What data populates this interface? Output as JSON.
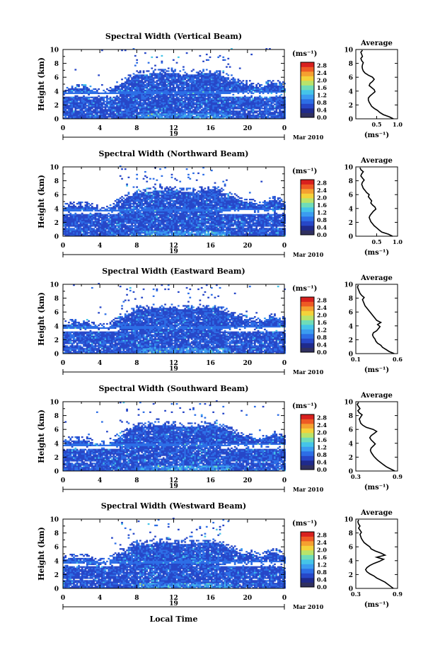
{
  "figure": {
    "xlabel": "Local Time",
    "date_label": "Mar 2010",
    "colorbar_unit": "(ms⁻¹)",
    "profile_title": "Average",
    "profile_xlabel": "(ms⁻¹)",
    "ylabel": "Height (km)",
    "day_label": "19"
  },
  "colors": {
    "colormap": [
      "#303060",
      "#1f2a8c",
      "#2747c8",
      "#2d6ee6",
      "#3b9cf0",
      "#45c4e8",
      "#6fdcb8",
      "#b9e36a",
      "#f4d23a",
      "#f5a030",
      "#ee5a24",
      "#d8201e"
    ],
    "text": "#000000"
  },
  "chart_data": [
    {
      "type": "heatmap",
      "title": "Spectral Width (Vertical Beam)",
      "xlabel": "",
      "ylabel": "Height (km)",
      "xlim": [
        0,
        24
      ],
      "ylim": [
        0,
        10
      ],
      "x_ticks": [
        "0",
        "4",
        "8",
        "12",
        "16",
        "20",
        "0"
      ],
      "y_ticks": [
        "0",
        "2",
        "4",
        "6",
        "8",
        "10"
      ],
      "colorbar_range": [
        0.0,
        2.8
      ],
      "colorbar_ticks": [
        "0.0",
        "0.4",
        "0.8",
        "1.2",
        "1.6",
        "2.0",
        "2.4",
        "2.8"
      ],
      "profile": {
        "xlim": [
          0.0,
          1.0
        ],
        "x_ticks": [
          "0.5",
          "1.0"
        ],
        "points": [
          [
            0.9,
            0.0
          ],
          [
            0.8,
            0.3
          ],
          [
            0.66,
            0.6
          ],
          [
            0.58,
            0.9
          ],
          [
            0.52,
            1.2
          ],
          [
            0.44,
            1.5
          ],
          [
            0.38,
            1.8
          ],
          [
            0.35,
            2.1
          ],
          [
            0.32,
            2.4
          ],
          [
            0.3,
            2.7
          ],
          [
            0.3,
            3.0
          ],
          [
            0.34,
            3.3
          ],
          [
            0.4,
            3.6
          ],
          [
            0.46,
            3.9
          ],
          [
            0.44,
            4.2
          ],
          [
            0.38,
            4.5
          ],
          [
            0.32,
            4.8
          ],
          [
            0.34,
            5.1
          ],
          [
            0.4,
            5.4
          ],
          [
            0.44,
            5.7
          ],
          [
            0.4,
            6.0
          ],
          [
            0.3,
            6.3
          ],
          [
            0.22,
            6.6
          ],
          [
            0.18,
            6.9
          ],
          [
            0.16,
            7.2
          ],
          [
            0.15,
            7.5
          ],
          [
            0.16,
            7.8
          ],
          [
            0.18,
            8.1
          ],
          [
            0.14,
            8.4
          ],
          [
            0.12,
            8.7
          ],
          [
            0.16,
            9.0
          ],
          [
            0.14,
            9.3
          ],
          [
            0.12,
            9.6
          ],
          [
            0.16,
            9.9
          ]
        ]
      }
    },
    {
      "type": "heatmap",
      "title": "Spectral Width (Northward Beam)",
      "xlabel": "",
      "ylabel": "Height (km)",
      "xlim": [
        0,
        24
      ],
      "ylim": [
        0,
        10
      ],
      "x_ticks": [
        "0",
        "4",
        "8",
        "12",
        "16",
        "20",
        "0"
      ],
      "y_ticks": [
        "0",
        "2",
        "4",
        "6",
        "8",
        "10"
      ],
      "colorbar_range": [
        0.0,
        2.8
      ],
      "colorbar_ticks": [
        "0.0",
        "0.4",
        "0.8",
        "1.2",
        "1.6",
        "2.0",
        "2.4",
        "2.8"
      ],
      "profile": {
        "xlim": [
          0.0,
          1.0
        ],
        "x_ticks": [
          "0.5",
          "1.0"
        ],
        "points": [
          [
            0.88,
            0.0
          ],
          [
            0.78,
            0.3
          ],
          [
            0.62,
            0.6
          ],
          [
            0.56,
            0.9
          ],
          [
            0.5,
            1.2
          ],
          [
            0.44,
            1.5
          ],
          [
            0.4,
            1.8
          ],
          [
            0.36,
            2.1
          ],
          [
            0.34,
            2.4
          ],
          [
            0.32,
            2.7
          ],
          [
            0.34,
            3.0
          ],
          [
            0.38,
            3.3
          ],
          [
            0.42,
            3.6
          ],
          [
            0.48,
            3.9
          ],
          [
            0.46,
            4.2
          ],
          [
            0.4,
            4.5
          ],
          [
            0.36,
            4.8
          ],
          [
            0.38,
            5.1
          ],
          [
            0.34,
            5.4
          ],
          [
            0.3,
            5.7
          ],
          [
            0.32,
            6.0
          ],
          [
            0.26,
            6.3
          ],
          [
            0.22,
            6.6
          ],
          [
            0.18,
            6.9
          ],
          [
            0.16,
            7.2
          ],
          [
            0.14,
            7.5
          ],
          [
            0.16,
            7.8
          ],
          [
            0.2,
            8.1
          ],
          [
            0.16,
            8.4
          ],
          [
            0.12,
            8.7
          ],
          [
            0.14,
            9.0
          ],
          [
            0.18,
            9.3
          ],
          [
            0.12,
            9.6
          ],
          [
            0.1,
            9.9
          ]
        ]
      }
    },
    {
      "type": "heatmap",
      "title": "Spectral Width (Eastward Beam)",
      "xlabel": "",
      "ylabel": "Height (km)",
      "xlim": [
        0,
        24
      ],
      "ylim": [
        0,
        10
      ],
      "x_ticks": [
        "0",
        "4",
        "8",
        "12",
        "16",
        "20",
        "0"
      ],
      "y_ticks": [
        "0",
        "2",
        "4",
        "6",
        "8",
        "10"
      ],
      "colorbar_range": [
        0.0,
        2.8
      ],
      "colorbar_ticks": [
        "0.0",
        "0.4",
        "0.8",
        "1.2",
        "1.6",
        "2.0",
        "2.4",
        "2.8"
      ],
      "profile": {
        "xlim": [
          0.1,
          0.6
        ],
        "x_ticks": [
          "0.1",
          "0.6"
        ],
        "points": [
          [
            0.56,
            0.0
          ],
          [
            0.5,
            0.3
          ],
          [
            0.46,
            0.6
          ],
          [
            0.42,
            0.9
          ],
          [
            0.4,
            1.2
          ],
          [
            0.36,
            1.5
          ],
          [
            0.34,
            1.8
          ],
          [
            0.33,
            2.1
          ],
          [
            0.31,
            2.4
          ],
          [
            0.3,
            2.7
          ],
          [
            0.31,
            3.0
          ],
          [
            0.35,
            3.3
          ],
          [
            0.37,
            3.6
          ],
          [
            0.39,
            3.9
          ],
          [
            0.36,
            4.2
          ],
          [
            0.4,
            4.5
          ],
          [
            0.35,
            4.8
          ],
          [
            0.33,
            5.1
          ],
          [
            0.31,
            5.4
          ],
          [
            0.29,
            5.7
          ],
          [
            0.27,
            6.0
          ],
          [
            0.25,
            6.3
          ],
          [
            0.23,
            6.6
          ],
          [
            0.21,
            6.9
          ],
          [
            0.2,
            7.2
          ],
          [
            0.19,
            7.5
          ],
          [
            0.18,
            7.8
          ],
          [
            0.2,
            8.1
          ],
          [
            0.17,
            8.4
          ],
          [
            0.15,
            8.7
          ],
          [
            0.14,
            9.0
          ],
          [
            0.13,
            9.3
          ],
          [
            0.12,
            9.6
          ],
          [
            0.13,
            9.9
          ]
        ]
      }
    },
    {
      "type": "heatmap",
      "title": "Spectral Width (Southward Beam)",
      "xlabel": "",
      "ylabel": "Height (km)",
      "xlim": [
        0,
        24
      ],
      "ylim": [
        0,
        10
      ],
      "x_ticks": [
        "0",
        "4",
        "8",
        "12",
        "16",
        "20",
        "0"
      ],
      "y_ticks": [
        "0",
        "2",
        "4",
        "6",
        "8",
        "10"
      ],
      "colorbar_range": [
        0.0,
        2.8
      ],
      "colorbar_ticks": [
        "0.0",
        "0.4",
        "0.8",
        "1.2",
        "1.6",
        "2.0",
        "2.4",
        "2.8"
      ],
      "profile": {
        "xlim": [
          0.3,
          0.9
        ],
        "x_ticks": [
          "0.3",
          "0.9"
        ],
        "points": [
          [
            0.86,
            0.0
          ],
          [
            0.8,
            0.3
          ],
          [
            0.74,
            0.6
          ],
          [
            0.7,
            0.9
          ],
          [
            0.66,
            1.2
          ],
          [
            0.62,
            1.5
          ],
          [
            0.59,
            1.8
          ],
          [
            0.56,
            2.1
          ],
          [
            0.54,
            2.4
          ],
          [
            0.52,
            2.7
          ],
          [
            0.51,
            3.0
          ],
          [
            0.52,
            3.3
          ],
          [
            0.55,
            3.6
          ],
          [
            0.58,
            3.9
          ],
          [
            0.55,
            4.2
          ],
          [
            0.52,
            4.5
          ],
          [
            0.5,
            4.8
          ],
          [
            0.52,
            5.1
          ],
          [
            0.56,
            5.4
          ],
          [
            0.6,
            5.7
          ],
          [
            0.55,
            6.0
          ],
          [
            0.45,
            6.3
          ],
          [
            0.4,
            6.6
          ],
          [
            0.37,
            6.9
          ],
          [
            0.36,
            7.2
          ],
          [
            0.35,
            7.5
          ],
          [
            0.37,
            7.8
          ],
          [
            0.39,
            8.1
          ],
          [
            0.35,
            8.4
          ],
          [
            0.33,
            8.7
          ],
          [
            0.36,
            9.0
          ],
          [
            0.34,
            9.3
          ],
          [
            0.32,
            9.6
          ],
          [
            0.34,
            9.9
          ]
        ]
      }
    },
    {
      "type": "heatmap",
      "title": "Spectral Width (Westward Beam)",
      "xlabel": "Local Time",
      "ylabel": "Height (km)",
      "xlim": [
        0,
        24
      ],
      "ylim": [
        0,
        10
      ],
      "x_ticks": [
        "0",
        "4",
        "8",
        "12",
        "16",
        "20",
        "0"
      ],
      "y_ticks": [
        "0",
        "2",
        "4",
        "6",
        "8",
        "10"
      ],
      "colorbar_range": [
        0.0,
        2.8
      ],
      "colorbar_ticks": [
        "0.0",
        "0.4",
        "0.8",
        "1.2",
        "1.6",
        "2.0",
        "2.4",
        "2.8"
      ],
      "profile": {
        "xlim": [
          0.3,
          0.9
        ],
        "x_ticks": [
          "0.3",
          "0.9"
        ],
        "points": [
          [
            0.84,
            0.0
          ],
          [
            0.8,
            0.3
          ],
          [
            0.76,
            0.6
          ],
          [
            0.72,
            0.9
          ],
          [
            0.66,
            1.2
          ],
          [
            0.6,
            1.5
          ],
          [
            0.56,
            1.8
          ],
          [
            0.5,
            2.1
          ],
          [
            0.46,
            2.4
          ],
          [
            0.44,
            2.7
          ],
          [
            0.46,
            3.0
          ],
          [
            0.5,
            3.3
          ],
          [
            0.56,
            3.6
          ],
          [
            0.64,
            3.9
          ],
          [
            0.7,
            4.2
          ],
          [
            0.6,
            4.5
          ],
          [
            0.72,
            4.8
          ],
          [
            0.66,
            5.1
          ],
          [
            0.58,
            5.4
          ],
          [
            0.52,
            5.7
          ],
          [
            0.5,
            6.0
          ],
          [
            0.46,
            6.3
          ],
          [
            0.42,
            6.6
          ],
          [
            0.4,
            6.9
          ],
          [
            0.38,
            7.2
          ],
          [
            0.37,
            7.5
          ],
          [
            0.36,
            7.8
          ],
          [
            0.38,
            8.1
          ],
          [
            0.36,
            8.4
          ],
          [
            0.34,
            8.7
          ],
          [
            0.36,
            9.0
          ],
          [
            0.34,
            9.3
          ],
          [
            0.33,
            9.6
          ],
          [
            0.34,
            9.9
          ]
        ]
      }
    }
  ]
}
